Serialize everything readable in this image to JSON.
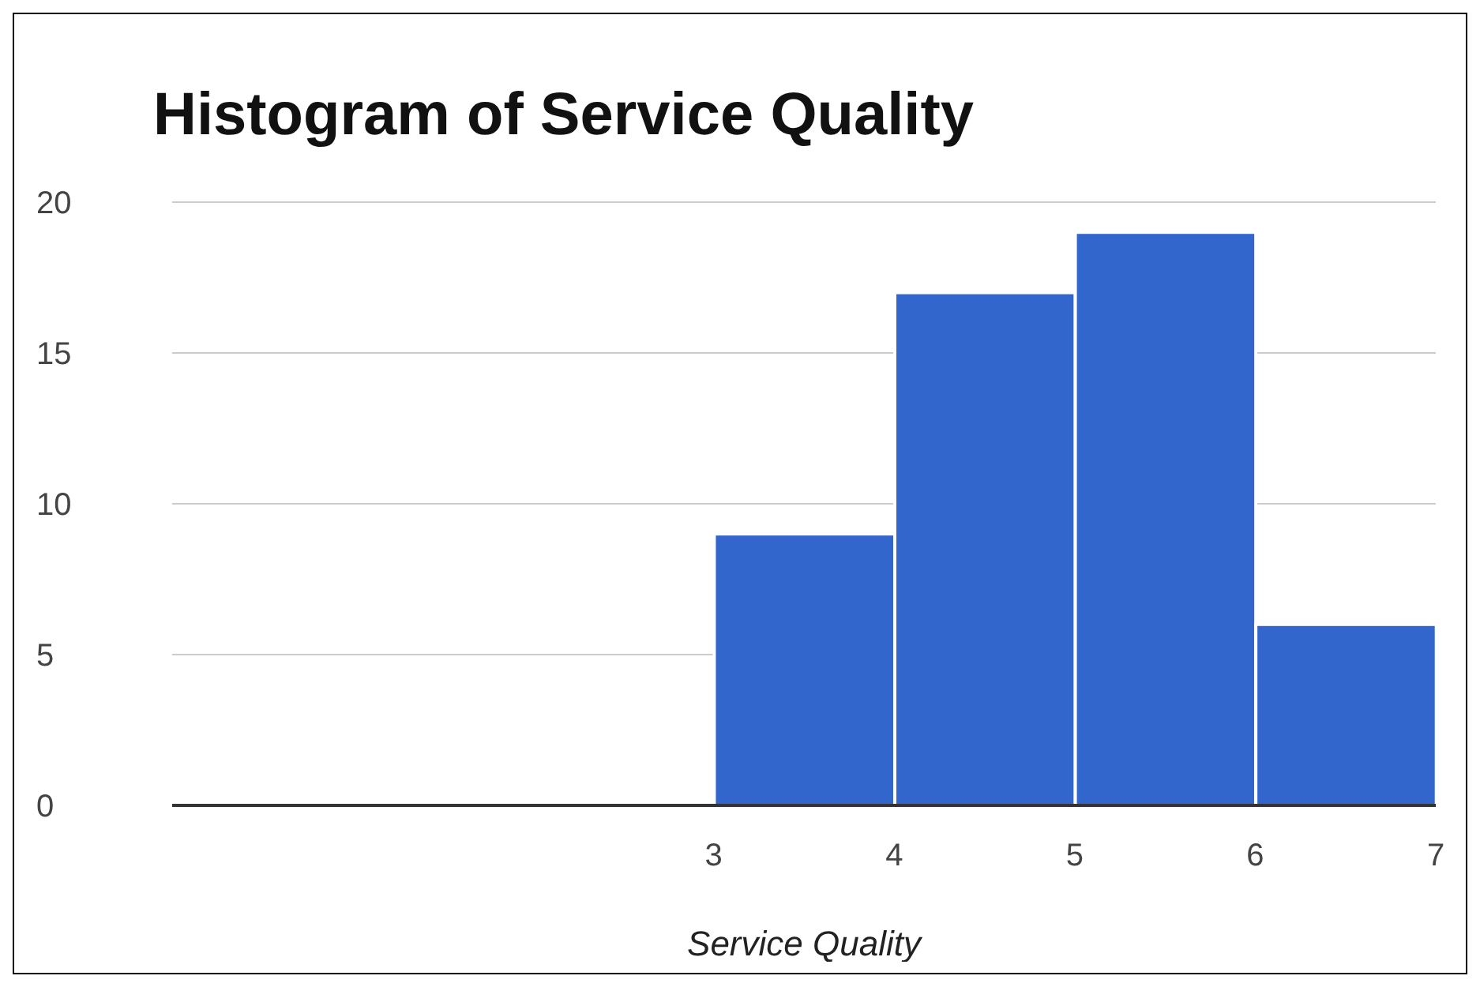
{
  "chart_data": {
    "type": "histogram",
    "title": "Histogram of Service Quality",
    "xlabel": "Service Quality",
    "bins": [
      3,
      4,
      5,
      6,
      7
    ],
    "values": [
      9,
      17,
      19,
      6
    ],
    "color": "#3366cc",
    "xlim": [
      0,
      7
    ],
    "xticks": [
      3,
      4,
      5,
      6,
      7
    ],
    "ylim": [
      0,
      20
    ],
    "yticks": [
      0,
      5,
      10,
      15,
      20
    ],
    "grid": "y",
    "legend": false
  }
}
